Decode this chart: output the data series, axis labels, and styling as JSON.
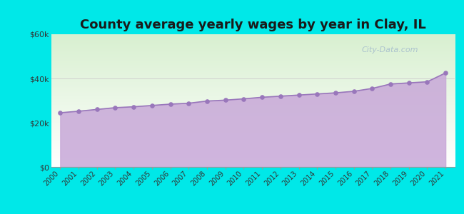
{
  "title": "County average yearly wages by year in Clay, IL",
  "years": [
    2000,
    2001,
    2002,
    2003,
    2004,
    2005,
    2006,
    2007,
    2008,
    2009,
    2010,
    2011,
    2012,
    2013,
    2014,
    2015,
    2016,
    2017,
    2018,
    2019,
    2020,
    2021
  ],
  "wages": [
    24500,
    25200,
    26000,
    26800,
    27200,
    27800,
    28400,
    28800,
    29800,
    30200,
    30800,
    31500,
    32000,
    32500,
    33000,
    33500,
    34200,
    35500,
    37500,
    38000,
    38500,
    42500
  ],
  "fill_color": "#c8a8d8",
  "fill_alpha": 0.85,
  "line_color": "#9977bb",
  "marker_color": "#9977bb",
  "bg_top": "#d8f0d0",
  "bg_bottom": "#ffffff",
  "outer_bg": "#00e8e8",
  "ylim": [
    0,
    60000
  ],
  "yticks": [
    0,
    20000,
    40000,
    60000
  ],
  "ytick_labels": [
    "$0",
    "$20k",
    "$40k",
    "$60k"
  ],
  "title_fontsize": 13,
  "watermark": "City-Data.com",
  "grid_color": "#cccccc"
}
